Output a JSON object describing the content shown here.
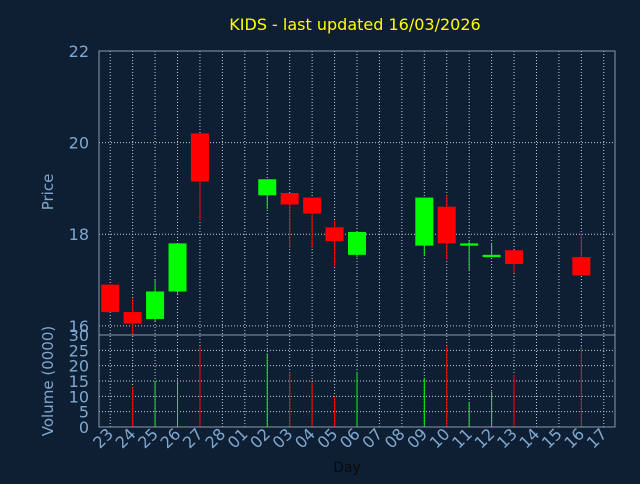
{
  "chart_data": {
    "type": "candlestick",
    "title": "KIDS - last updated 16/03/2026",
    "xlabel": "Day",
    "colors": {
      "background": "#0f1f33",
      "frame": "#8a9aaa",
      "grid": "#c8ccd0",
      "title": "#ffff00",
      "label": "#7fa8d0",
      "up": "#00ff00",
      "down": "#ff0000"
    },
    "price": {
      "ylabel": "Price",
      "ylim": [
        15.8,
        22
      ],
      "ticks": [
        "16",
        "18",
        "20",
        "22"
      ],
      "tick_values": [
        16,
        18,
        20,
        22
      ]
    },
    "volume": {
      "ylabel": "Volume (0000)",
      "ylim": [
        0,
        30
      ],
      "ticks": [
        "0",
        "5",
        "10",
        "15",
        "20",
        "25",
        "30"
      ],
      "tick_values": [
        0,
        5,
        10,
        15,
        20,
        25,
        30
      ]
    },
    "categories": [
      "23",
      "24",
      "25",
      "26",
      "27",
      "28",
      "01",
      "02",
      "03",
      "04",
      "05",
      "06",
      "07",
      "08",
      "09",
      "10",
      "11",
      "12",
      "13",
      "14",
      "15",
      "16",
      "17"
    ],
    "candles": [
      {
        "day": "23",
        "open": 16.9,
        "high": 16.9,
        "low": 16.3,
        "close": 16.3,
        "volume": 0
      },
      {
        "day": "24",
        "open": 16.3,
        "high": 16.6,
        "low": 15.8,
        "close": 16.05,
        "volume": 13
      },
      {
        "day": "25",
        "open": 16.15,
        "high": 17.0,
        "low": 16.1,
        "close": 16.75,
        "volume": 15
      },
      {
        "day": "26",
        "open": 16.75,
        "high": 17.8,
        "low": 16.7,
        "close": 17.8,
        "volume": 15.5
      },
      {
        "day": "27",
        "open": 20.2,
        "high": 20.2,
        "low": 18.3,
        "close": 19.15,
        "volume": 26.5
      },
      {
        "day": "02",
        "open": 18.85,
        "high": 19.2,
        "low": 18.55,
        "close": 19.2,
        "volume": 24
      },
      {
        "day": "03",
        "open": 18.9,
        "high": 18.9,
        "low": 17.7,
        "close": 18.65,
        "volume": 18
      },
      {
        "day": "04",
        "open": 18.8,
        "high": 18.8,
        "low": 17.7,
        "close": 18.45,
        "volume": 14.5
      },
      {
        "day": "05",
        "open": 18.15,
        "high": 18.3,
        "low": 17.3,
        "close": 17.85,
        "volume": 10
      },
      {
        "day": "06",
        "open": 17.55,
        "high": 18.05,
        "low": 17.5,
        "close": 18.05,
        "volume": 18
      },
      {
        "day": "09",
        "open": 17.75,
        "high": 18.8,
        "low": 17.55,
        "close": 18.8,
        "volume": 16
      },
      {
        "day": "10",
        "open": 18.6,
        "high": 18.85,
        "low": 17.45,
        "close": 17.8,
        "volume": 26.5
      },
      {
        "day": "11",
        "open": 17.75,
        "high": 17.85,
        "low": 17.2,
        "close": 17.8,
        "volume": 8
      },
      {
        "day": "12",
        "open": 17.5,
        "high": 17.8,
        "low": 17.5,
        "close": 17.55,
        "volume": 11.5
      },
      {
        "day": "13",
        "open": 17.65,
        "high": 17.65,
        "low": 17.15,
        "close": 17.35,
        "volume": 17
      },
      {
        "day": "16",
        "open": 17.5,
        "high": 18.0,
        "low": 17.1,
        "close": 17.1,
        "volume": 26.5
      }
    ]
  }
}
